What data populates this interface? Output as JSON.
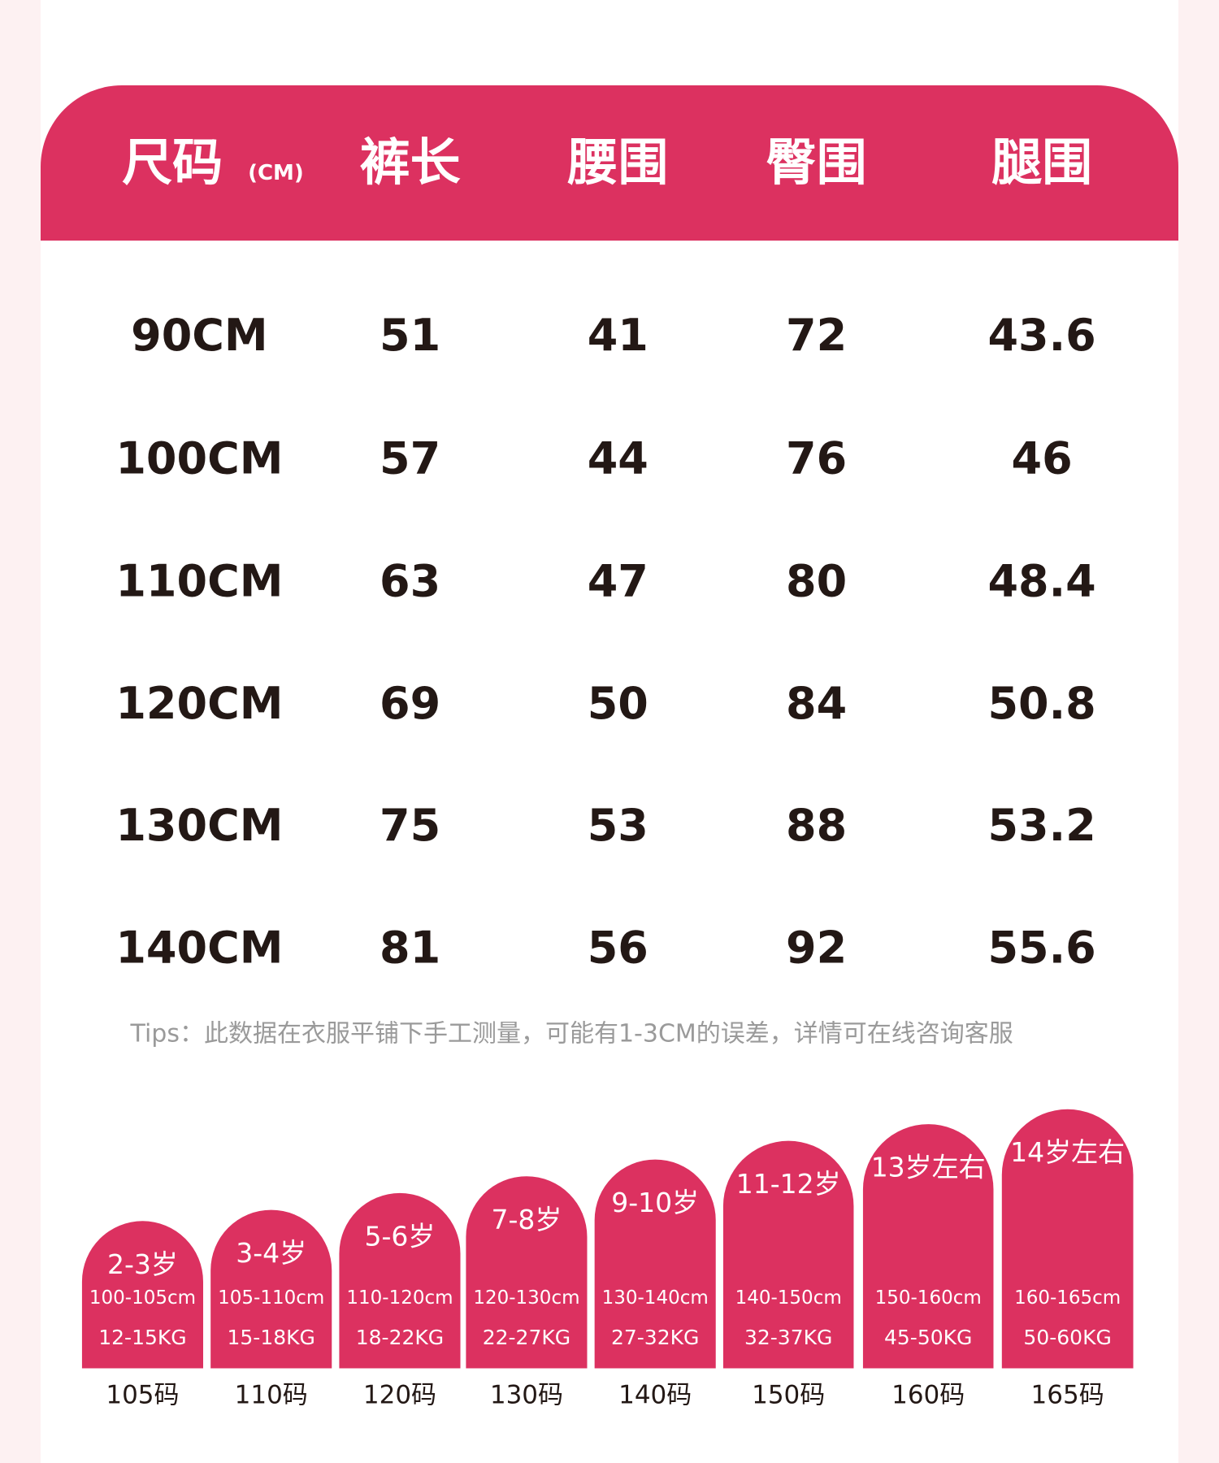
{
  "header": {
    "title": "尺码",
    "unit": "(CM)",
    "columns": [
      "裤长",
      "腰围",
      "臀围",
      "腿围"
    ]
  },
  "table": {
    "rows": [
      [
        "90CM",
        51,
        41,
        72,
        43.6
      ],
      [
        "100CM",
        57,
        44,
        76,
        46
      ],
      [
        "110CM",
        63,
        47,
        80,
        48.4
      ],
      [
        "120CM",
        69,
        50,
        84,
        50.8
      ],
      [
        "130CM",
        75,
        53,
        88,
        53.2
      ],
      [
        "140CM",
        81,
        56,
        92,
        55.6
      ]
    ]
  },
  "tips": "Tips：此数据在衣服平铺下手工测量，可能有1-3CM的误差，详情可在线咨询客服",
  "cards": [
    {
      "age": "2-3岁",
      "height": "100-105cm",
      "weight": "12-15KG",
      "size": "105码"
    },
    {
      "age": "3-4岁",
      "height": "105-110cm",
      "weight": "15-18KG",
      "size": "110码"
    },
    {
      "age": "5-6岁",
      "height": "110-120cm",
      "weight": "18-22KG",
      "size": "120码"
    },
    {
      "age": "7-8岁",
      "height": "120-130cm",
      "weight": "22-27KG",
      "size": "130码"
    },
    {
      "age": "9-10岁",
      "height": "130-140cm",
      "weight": "27-32KG",
      "size": "140码"
    },
    {
      "age": "11-12岁",
      "height": "140-150cm",
      "weight": "32-37KG",
      "size": "150码"
    },
    {
      "age": "13岁左右",
      "height": "150-160cm",
      "weight": "45-50KG",
      "size": "160码"
    },
    {
      "age": "14岁左右",
      "height": "160-165cm",
      "weight": "50-60KG",
      "size": "165码"
    }
  ]
}
